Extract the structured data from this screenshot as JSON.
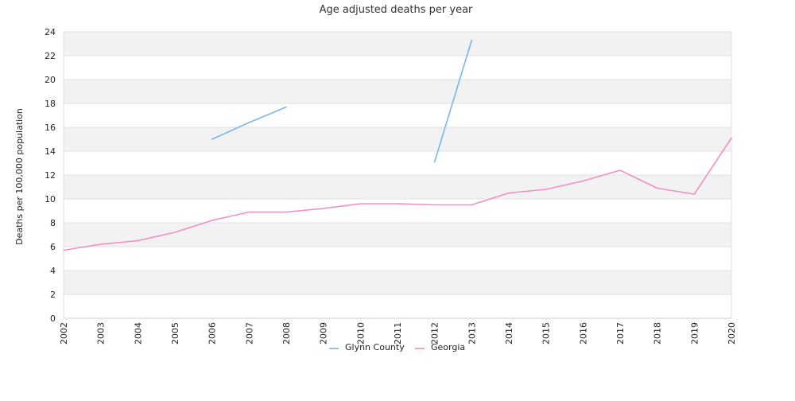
{
  "chart_data": {
    "type": "line",
    "title": "Age adjusted deaths per year",
    "xlabel": "",
    "ylabel": "Deaths per 100,000 population",
    "categories": [
      "2002",
      "2003",
      "2004",
      "2005",
      "2006",
      "2007",
      "2008",
      "2009",
      "2010",
      "2011",
      "2012",
      "2013",
      "2014",
      "2015",
      "2016",
      "2017",
      "2018",
      "2019",
      "2020"
    ],
    "ylim": [
      0,
      24
    ],
    "yticks": [
      0,
      2,
      4,
      6,
      8,
      10,
      12,
      14,
      16,
      18,
      20,
      22,
      24
    ],
    "grid": "horizontal alternating bands",
    "legend_position": "bottom-center",
    "series": [
      {
        "name": "Glynn County",
        "color": "#7cb5ec",
        "values": [
          null,
          null,
          null,
          null,
          15.0,
          16.4,
          17.7,
          null,
          null,
          null,
          13.1,
          23.3,
          null,
          null,
          null,
          null,
          null,
          null,
          null
        ]
      },
      {
        "name": "Georgia",
        "color": "#f28fc2",
        "values": [
          5.7,
          6.2,
          6.5,
          7.2,
          8.2,
          8.9,
          8.9,
          9.2,
          9.6,
          9.6,
          9.5,
          9.5,
          10.5,
          10.8,
          11.5,
          12.4,
          10.9,
          10.4,
          15.1
        ]
      }
    ]
  }
}
